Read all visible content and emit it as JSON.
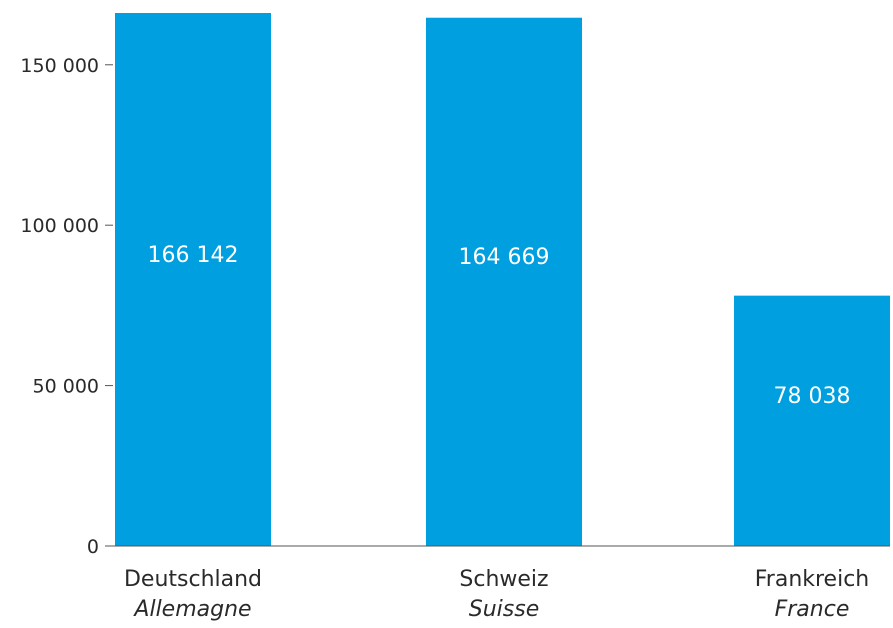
{
  "chart_data": {
    "type": "bar",
    "categories": [
      "Deutschland",
      "Schweiz",
      "Frankreich"
    ],
    "category_sublabels": [
      "Allemagne",
      "Suisse",
      "France"
    ],
    "values": [
      166142,
      164669,
      78038
    ],
    "value_labels": [
      "166 142",
      "164 669",
      "78 038"
    ],
    "ylim": [
      0,
      166142
    ],
    "yticks": [
      0,
      50000,
      100000,
      150000
    ],
    "ytick_labels": [
      "0",
      "50 000",
      "100 000",
      "150 000"
    ],
    "grid": false,
    "bar_color": "#009fdf",
    "axis_color": "#555555"
  }
}
